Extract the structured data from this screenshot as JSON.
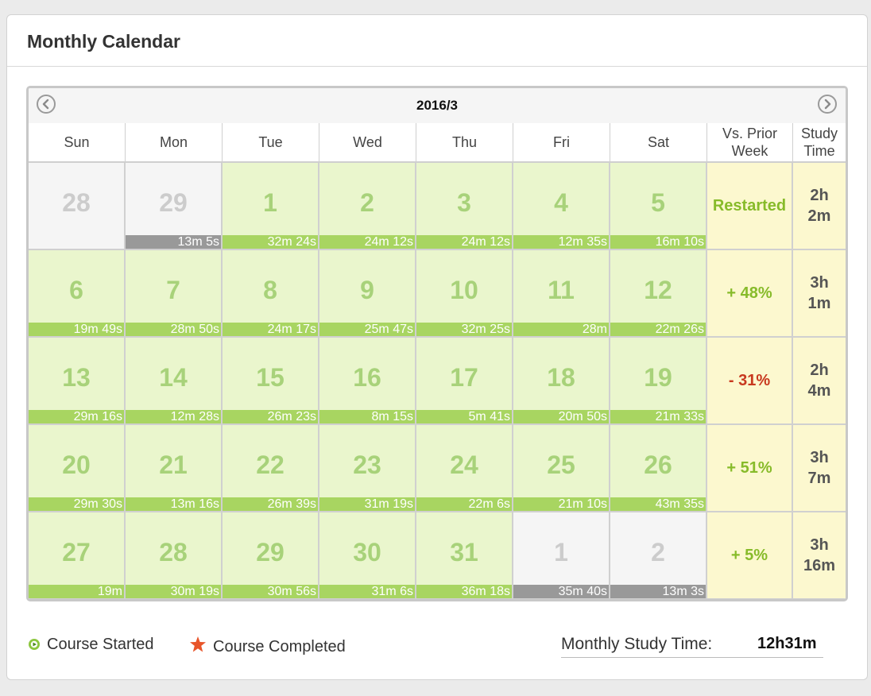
{
  "panel": {
    "title": "Monthly Calendar"
  },
  "calendar": {
    "month_label": "2016/3",
    "prev_icon": "chevron-left-circle-icon",
    "next_icon": "chevron-right-circle-icon",
    "headers": {
      "sun": "Sun",
      "mon": "Mon",
      "tue": "Tue",
      "wed": "Wed",
      "thu": "Thu",
      "fri": "Fri",
      "sat": "Sat"
    },
    "vs_header": [
      "Vs. Prior",
      "Week"
    ],
    "study_header": [
      "Study",
      "Time"
    ],
    "weeks": [
      {
        "days": [
          {
            "day": "28",
            "time": "",
            "current": false
          },
          {
            "day": "29",
            "time": "13m 5s",
            "current": false
          },
          {
            "day": "1",
            "time": "32m 24s",
            "current": true
          },
          {
            "day": "2",
            "time": "24m 12s",
            "current": true
          },
          {
            "day": "3",
            "time": "24m 12s",
            "current": true
          },
          {
            "day": "4",
            "time": "12m 35s",
            "current": true
          },
          {
            "day": "5",
            "time": "16m 10s",
            "current": true
          }
        ],
        "vs": "Restarted",
        "vs_trend": "pos",
        "study": [
          "2h",
          "2m"
        ]
      },
      {
        "days": [
          {
            "day": "6",
            "time": "19m 49s",
            "current": true
          },
          {
            "day": "7",
            "time": "28m 50s",
            "current": true
          },
          {
            "day": "8",
            "time": "24m 17s",
            "current": true
          },
          {
            "day": "9",
            "time": "25m 47s",
            "current": true
          },
          {
            "day": "10",
            "time": "32m 25s",
            "current": true
          },
          {
            "day": "11",
            "time": "28m",
            "current": true
          },
          {
            "day": "12",
            "time": "22m 26s",
            "current": true
          }
        ],
        "vs": "+ 48%",
        "vs_trend": "pos",
        "study": [
          "3h",
          "1m"
        ]
      },
      {
        "days": [
          {
            "day": "13",
            "time": "29m 16s",
            "current": true
          },
          {
            "day": "14",
            "time": "12m 28s",
            "current": true
          },
          {
            "day": "15",
            "time": "26m 23s",
            "current": true
          },
          {
            "day": "16",
            "time": "8m 15s",
            "current": true
          },
          {
            "day": "17",
            "time": "5m 41s",
            "current": true
          },
          {
            "day": "18",
            "time": "20m 50s",
            "current": true
          },
          {
            "day": "19",
            "time": "21m 33s",
            "current": true
          }
        ],
        "vs": "- 31%",
        "vs_trend": "neg",
        "study": [
          "2h",
          "4m"
        ]
      },
      {
        "days": [
          {
            "day": "20",
            "time": "29m 30s",
            "current": true
          },
          {
            "day": "21",
            "time": "13m 16s",
            "current": true
          },
          {
            "day": "22",
            "time": "26m 39s",
            "current": true
          },
          {
            "day": "23",
            "time": "31m 19s",
            "current": true
          },
          {
            "day": "24",
            "time": "22m 6s",
            "current": true
          },
          {
            "day": "25",
            "time": "21m 10s",
            "current": true
          },
          {
            "day": "26",
            "time": "43m 35s",
            "current": true
          }
        ],
        "vs": "+ 51%",
        "vs_trend": "pos",
        "study": [
          "3h",
          "7m"
        ]
      },
      {
        "days": [
          {
            "day": "27",
            "time": "19m",
            "current": true
          },
          {
            "day": "28",
            "time": "30m 19s",
            "current": true
          },
          {
            "day": "29",
            "time": "30m 56s",
            "current": true
          },
          {
            "day": "30",
            "time": "31m 6s",
            "current": true
          },
          {
            "day": "31",
            "time": "36m 18s",
            "current": true
          },
          {
            "day": "1",
            "time": "35m 40s",
            "current": false
          },
          {
            "day": "2",
            "time": "13m 3s",
            "current": false
          }
        ],
        "vs": "+ 5%",
        "vs_trend": "pos",
        "study": [
          "3h",
          "16m"
        ]
      }
    ]
  },
  "legend": {
    "started_label": "Course Started",
    "started_icon": "play-circle-icon",
    "completed_label": "Course Completed",
    "completed_icon": "star-icon"
  },
  "summary": {
    "label": "Monthly Study Time:",
    "value": "12h31m"
  },
  "colors": {
    "current_bg": "#eaf6cd",
    "other_bg": "#f5f5f5",
    "bar_green": "#a8d561",
    "bar_gray": "#999999",
    "day_green": "#a8d27a",
    "summary_bg": "#fcf8cf",
    "positive": "#87bb2a",
    "negative": "#c8391f"
  }
}
